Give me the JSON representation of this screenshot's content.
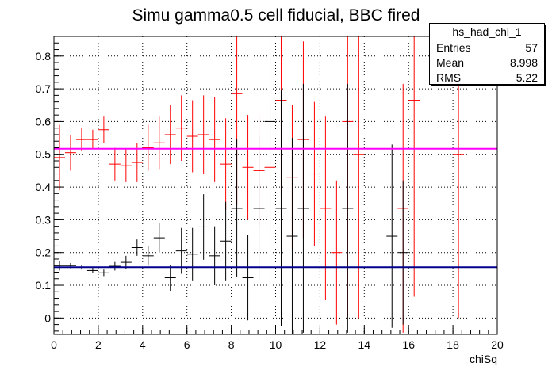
{
  "chart_data": {
    "type": "scatter",
    "title": "Simu gamma0.5 cell fiducial, BBC fired",
    "xlabel": "chiSq",
    "ylabel": "",
    "xlim": [
      0,
      20
    ],
    "ylim": [
      -0.05,
      0.86
    ],
    "xticks": [
      0,
      2,
      4,
      6,
      8,
      10,
      12,
      14,
      16,
      18,
      20
    ],
    "yticks": [
      0,
      0.1,
      0.2,
      0.3,
      0.4,
      0.5,
      0.6,
      0.7,
      0.8
    ],
    "grid": true,
    "bin_width": 0.5,
    "series": [
      {
        "color": "#ff0000",
        "fit_value": 0.517,
        "fit_color": "#ff00ff",
        "points": [
          {
            "x": 0.25,
            "y": 0.49,
            "err": 0.1
          },
          {
            "x": 0.75,
            "y": 0.505,
            "err": 0.055
          },
          {
            "x": 1.25,
            "y": 0.545,
            "err": 0.035
          },
          {
            "x": 1.75,
            "y": 0.545,
            "err": 0.03
          },
          {
            "x": 2.25,
            "y": 0.575,
            "err": 0.04
          },
          {
            "x": 2.75,
            "y": 0.47,
            "err": 0.05
          },
          {
            "x": 3.25,
            "y": 0.465,
            "err": 0.05
          },
          {
            "x": 3.75,
            "y": 0.475,
            "err": 0.06
          },
          {
            "x": 4.25,
            "y": 0.52,
            "err": 0.07
          },
          {
            "x": 4.75,
            "y": 0.535,
            "err": 0.08
          },
          {
            "x": 5.25,
            "y": 0.56,
            "err": 0.09
          },
          {
            "x": 5.75,
            "y": 0.58,
            "err": 0.1
          },
          {
            "x": 6.25,
            "y": 0.555,
            "err": 0.11
          },
          {
            "x": 6.75,
            "y": 0.56,
            "err": 0.12
          },
          {
            "x": 7.25,
            "y": 0.545,
            "err": 0.13
          },
          {
            "x": 7.75,
            "y": 0.47,
            "err": 0.14
          },
          {
            "x": 8.25,
            "y": 0.685,
            "err": 0.34
          },
          {
            "x": 8.75,
            "y": 0.46,
            "err": 0.16
          },
          {
            "x": 9.25,
            "y": 0.45,
            "err": 0.17
          },
          {
            "x": 9.75,
            "y": 0.46,
            "err": 0.19
          },
          {
            "x": 10.25,
            "y": 0.665,
            "err": 0.29
          },
          {
            "x": 10.75,
            "y": 0.43,
            "err": 0.22
          },
          {
            "x": 11.25,
            "y": 0.545,
            "err": 0.3
          },
          {
            "x": 11.75,
            "y": 0.44,
            "err": 0.22
          },
          {
            "x": 12.25,
            "y": 0.335,
            "err": 0.28
          },
          {
            "x": 12.75,
            "y": 0.2,
            "err": 0.22
          },
          {
            "x": 13.25,
            "y": 0.6,
            "err": 0.6
          },
          {
            "x": 13.75,
            "y": 0.5,
            "err": 0.5
          },
          {
            "x": 15.75,
            "y": 0.335,
            "err": 0.38
          },
          {
            "x": 16.25,
            "y": 0.665,
            "err": 0.6
          },
          {
            "x": 18.25,
            "y": 0.5,
            "err": 0.5
          }
        ]
      },
      {
        "color": "#000000",
        "fit_value": 0.155,
        "fit_color": "#00008b",
        "points": [
          {
            "x": 0.25,
            "y": 0.16,
            "err": 0.015
          },
          {
            "x": 0.75,
            "y": 0.16,
            "err": 0.008
          },
          {
            "x": 1.25,
            "y": 0.155,
            "err": 0.007
          },
          {
            "x": 1.75,
            "y": 0.145,
            "err": 0.008
          },
          {
            "x": 2.25,
            "y": 0.138,
            "err": 0.01
          },
          {
            "x": 2.75,
            "y": 0.158,
            "err": 0.013
          },
          {
            "x": 3.25,
            "y": 0.17,
            "err": 0.02
          },
          {
            "x": 3.75,
            "y": 0.215,
            "err": 0.025
          },
          {
            "x": 4.25,
            "y": 0.19,
            "err": 0.03
          },
          {
            "x": 4.75,
            "y": 0.245,
            "err": 0.045
          },
          {
            "x": 5.25,
            "y": 0.123,
            "err": 0.04
          },
          {
            "x": 5.75,
            "y": 0.205,
            "err": 0.07
          },
          {
            "x": 6.25,
            "y": 0.195,
            "err": 0.08
          },
          {
            "x": 6.75,
            "y": 0.278,
            "err": 0.1
          },
          {
            "x": 7.25,
            "y": 0.19,
            "err": 0.09
          },
          {
            "x": 7.75,
            "y": 0.235,
            "err": 0.12
          },
          {
            "x": 8.25,
            "y": 0.335,
            "err": 0.21
          },
          {
            "x": 8.75,
            "y": 0.123,
            "err": 0.13
          },
          {
            "x": 9.25,
            "y": 0.335,
            "err": 0.22
          },
          {
            "x": 9.75,
            "y": 0.6,
            "err": 0.5
          },
          {
            "x": 10.25,
            "y": 0.335,
            "err": 0.36
          },
          {
            "x": 10.75,
            "y": 0.25,
            "err": 0.3
          },
          {
            "x": 11.25,
            "y": 0.335,
            "err": 0.38
          },
          {
            "x": 13.25,
            "y": 0.335,
            "err": 0.38
          },
          {
            "x": 15.25,
            "y": 0.25,
            "err": 0.28
          },
          {
            "x": 15.75,
            "y": 0.2,
            "err": 0.22
          }
        ]
      }
    ]
  },
  "stats_box": {
    "name": "hs_had_chi_1",
    "entries_label": "Entries",
    "entries_value": "57",
    "mean_label": "Mean",
    "mean_value": "8.998",
    "rms_label": "RMS",
    "rms_value": "5.22"
  }
}
